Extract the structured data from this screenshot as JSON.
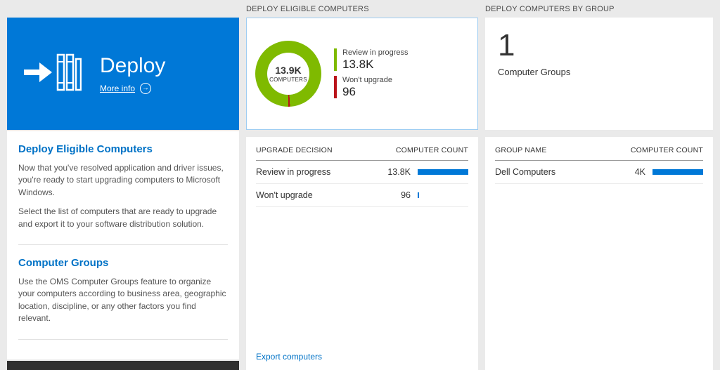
{
  "colors": {
    "accent_blue": "#0078d7",
    "heading_blue": "#0072c6",
    "green": "#7fba00",
    "red": "#ba141a"
  },
  "left": {
    "tile": {
      "title": "Deploy",
      "more_info_label": "More info"
    },
    "sections": [
      {
        "heading": "Deploy Eligible Computers",
        "p1": "Now that you've resolved application and driver issues, you're ready to start upgrading computers to Microsoft Windows.",
        "p2": "Select the list of computers that are ready to upgrade and export it to your software distribution solution."
      },
      {
        "heading": "Computer Groups",
        "p1": "Use the OMS Computer Groups feature to organize your computers according to business area, geographic location, discipline, or any other factors you find relevant."
      }
    ]
  },
  "middle": {
    "header": "DEPLOY ELIGIBLE COMPUTERS",
    "donut": {
      "center_value": "13.9K",
      "center_label": "COMPUTERS",
      "legend": [
        {
          "label": "Review in progress",
          "value": "13.8K",
          "color": "#7fba00"
        },
        {
          "label": "Won't upgrade",
          "value": "96",
          "color": "#ba141a"
        }
      ]
    },
    "table": {
      "col1": "UPGRADE DECISION",
      "col2": "COMPUTER COUNT",
      "rows": [
        {
          "label": "Review in progress",
          "value": "13.8K",
          "bar_pct": 100
        },
        {
          "label": "Won't upgrade",
          "value": "96",
          "bar_pct": 3
        }
      ]
    },
    "export_link": "Export computers"
  },
  "right": {
    "header": "DEPLOY COMPUTERS BY GROUP",
    "tile": {
      "count": "1",
      "label": "Computer Groups"
    },
    "table": {
      "col1": "GROUP NAME",
      "col2": "COMPUTER COUNT",
      "rows": [
        {
          "label": "Dell Computers",
          "value": "4K",
          "bar_pct": 100
        }
      ]
    }
  },
  "chart_data": [
    {
      "type": "pie",
      "title": "Deploy Eligible Computers",
      "labels": [
        "Review in progress",
        "Won't upgrade"
      ],
      "values": [
        13800,
        96
      ],
      "colors": [
        "#7fba00",
        "#ba141a"
      ],
      "center_label": "13.9K COMPUTERS",
      "legend_position": "right"
    },
    {
      "type": "table",
      "title": "Upgrade Decision",
      "columns": [
        "UPGRADE DECISION",
        "COMPUTER COUNT"
      ],
      "rows": [
        [
          "Review in progress",
          "13.8K"
        ],
        [
          "Won't upgrade",
          "96"
        ]
      ]
    },
    {
      "type": "table",
      "title": "Deploy Computers by Group",
      "columns": [
        "GROUP NAME",
        "COMPUTER COUNT"
      ],
      "rows": [
        [
          "Dell Computers",
          "4K"
        ]
      ]
    }
  ]
}
